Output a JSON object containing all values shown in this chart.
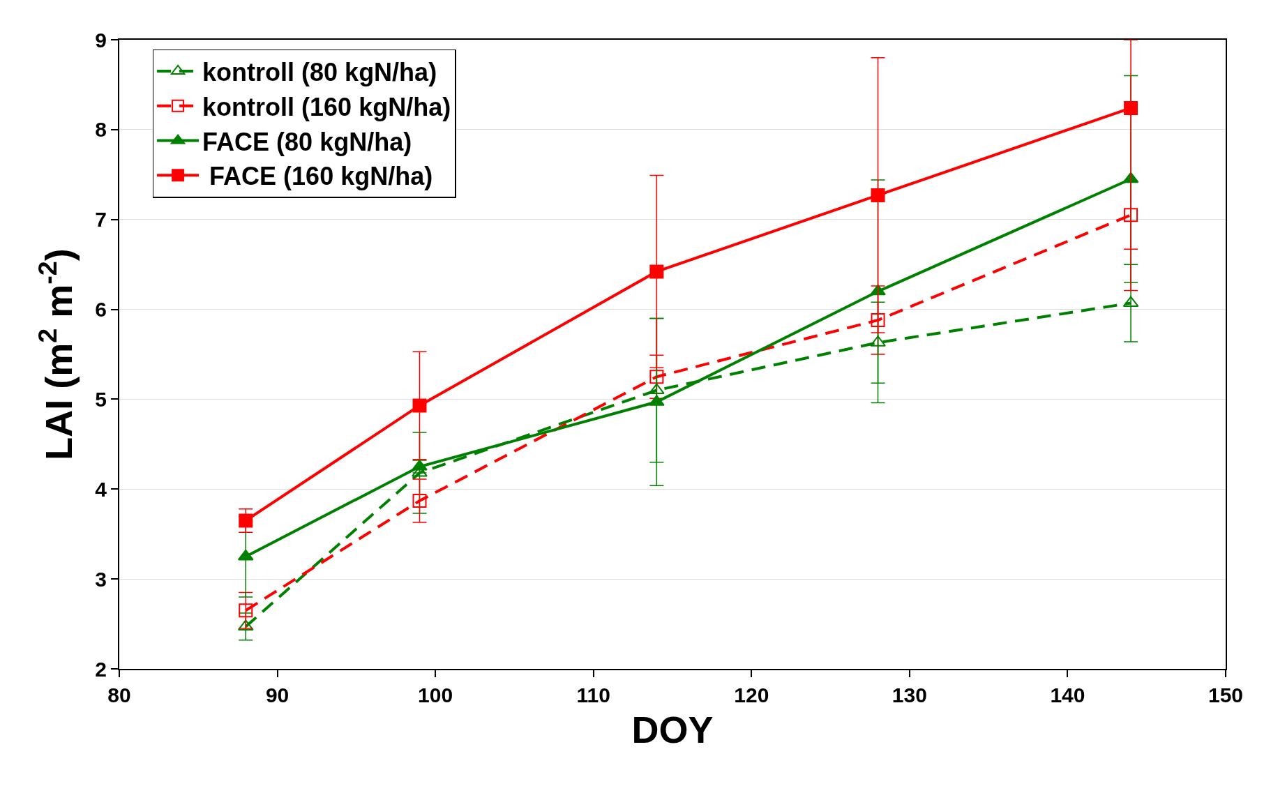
{
  "chart_data": {
    "type": "line",
    "xlabel": "DOY",
    "ylabel": "LAI (m$^{2}$ m$^{-2}$)",
    "x": [
      88,
      99,
      114,
      128,
      144
    ],
    "series": [
      {
        "name": "kontroll (80 kgN/ha)",
        "color": "#008000",
        "marker": "triangle",
        "line_style": "dashed",
        "values": [
          2.47,
          4.18,
          5.1,
          5.63,
          6.07
        ],
        "errors": [
          0.15,
          0.45,
          0.8,
          0.45,
          0.43
        ]
      },
      {
        "name": "kontroll (160 kgN/ha)",
        "color": "#ff0000",
        "marker": "square",
        "line_style": "dashed",
        "values": [
          2.65,
          3.87,
          5.25,
          5.88,
          7.05
        ],
        "errors": [
          0.2,
          0.24,
          0.24,
          0.38,
          0.38
        ]
      },
      {
        "name": "FACE (80 kgN/ha)",
        "color": "#008000",
        "marker": "triangle",
        "line_style": "solid",
        "values": [
          3.25,
          4.25,
          4.97,
          6.2,
          7.45
        ],
        "errors": [
          0.45,
          0.07,
          0.93,
          1.24,
          1.15
        ]
      },
      {
        "name": " FACE (160 kgN/ha)",
        "color": "#ff0000",
        "marker": "square",
        "line_style": "solid",
        "values": [
          3.65,
          4.93,
          6.42,
          7.27,
          8.24
        ],
        "errors": [
          0.13,
          0.6,
          1.07,
          1.53,
          [
            6.21,
            9.0
          ]
        ]
      }
    ],
    "xlim": [
      80,
      150
    ],
    "xticks": [
      80,
      90,
      100,
      110,
      120,
      130,
      140,
      150
    ],
    "ylim": [
      2,
      9
    ],
    "yticks": [
      2,
      3,
      4,
      5,
      6,
      7,
      8,
      9
    ],
    "grid": "y",
    "legend": "top left"
  }
}
